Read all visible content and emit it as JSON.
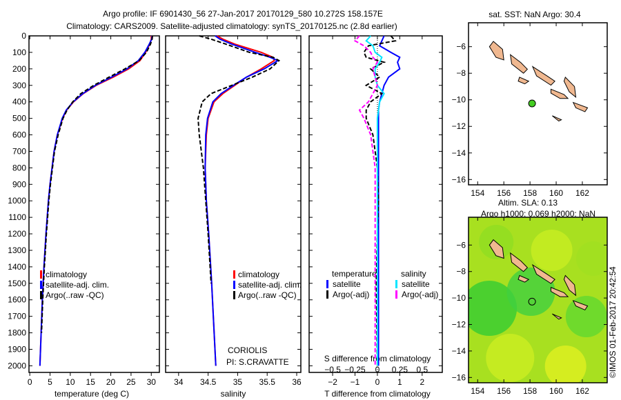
{
  "title_line1": "Argo profile: IF 6901430_56 27-Jan-2017 20170129_580 10.272S 158.157E",
  "title_line2": "Climatology: CARS2009. Satellite-adjusted climatology: synTS_20170125.nc (2.8d earlier)",
  "copyright": "©IMOS 01-Feb-2017 20:42:54",
  "colors": {
    "climatology": "#ff0000",
    "satellite": "#0000ff",
    "argo": "#000000",
    "sal_satellite": "#00e5ff",
    "sal_argo": "#ff00ff",
    "land": "#f0b890",
    "float": "#44cc22"
  },
  "chart_data": [
    {
      "type": "line",
      "name": "temperature",
      "xlabel": "temperature (deg C)",
      "ylabel": "",
      "xlim": [
        -0.2,
        32
      ],
      "ylim": [
        2040,
        0
      ],
      "xticks": [
        0,
        5,
        10,
        15,
        20,
        25,
        30
      ],
      "yticks": [
        0,
        100,
        200,
        300,
        400,
        500,
        600,
        700,
        800,
        900,
        1000,
        1100,
        1200,
        1300,
        1400,
        1500,
        1600,
        1700,
        1800,
        1900,
        2000
      ],
      "legend": [
        "climatology",
        "satellite-adj. clim.",
        "Argo(..raw -QC)"
      ],
      "depth": [
        0,
        20,
        50,
        100,
        150,
        200,
        250,
        300,
        350,
        400,
        450,
        500,
        600,
        700,
        800,
        900,
        1000,
        1200,
        1400,
        1600,
        1800,
        2000
      ],
      "series": [
        {
          "name": "climatology",
          "values": [
            30,
            30,
            29.6,
            28.6,
            27.2,
            24.4,
            20.6,
            16.4,
            13.2,
            10.8,
            9.1,
            8.1,
            6.8,
            6.0,
            5.5,
            5.0,
            4.6,
            4.0,
            3.5,
            3.1,
            2.8,
            2.5
          ]
        },
        {
          "name": "satellite-adj. clim.",
          "values": [
            30.2,
            30.1,
            29.5,
            28.4,
            26.8,
            24.0,
            20.2,
            16.2,
            13.1,
            10.7,
            9.0,
            8.0,
            6.8,
            6.0,
            5.5,
            5.0,
            4.6,
            4.0,
            3.5,
            3.1,
            2.8,
            2.5
          ]
        },
        {
          "name": "Argo(..raw -QC)",
          "values": [
            30.3,
            30.2,
            29.8,
            28.8,
            27.0,
            23.5,
            19.6,
            15.8,
            12.6,
            10.6,
            9.2,
            8.2,
            7.0,
            6.1,
            5.6,
            5.1,
            4.7,
            4.1,
            3.6,
            3.2,
            2.9
          ]
        }
      ]
    },
    {
      "type": "line",
      "name": "salinity",
      "xlabel": "salinity",
      "xlim": [
        33.78,
        36.07
      ],
      "ylim": [
        2040,
        0
      ],
      "xticks": [
        34,
        34.5,
        35,
        35.5,
        36
      ],
      "legend": [
        "climatology",
        "satellite-adj. clim.",
        "Argo(..raw -QC)"
      ],
      "annotation": [
        "CORIOLIS",
        "PI: S.CRAVATTE"
      ],
      "depth": [
        0,
        20,
        50,
        100,
        130,
        150,
        200,
        250,
        300,
        350,
        400,
        500,
        600,
        800,
        1000,
        1200,
        1500,
        2000
      ],
      "series": [
        {
          "name": "climatology",
          "values": [
            34.65,
            34.75,
            34.95,
            35.4,
            35.6,
            35.62,
            35.4,
            35.15,
            34.95,
            34.75,
            34.6,
            34.5,
            34.47,
            34.45,
            34.47,
            34.51,
            34.56,
            34.63
          ]
        },
        {
          "name": "satellite-adj. clim.",
          "values": [
            34.62,
            34.7,
            34.9,
            35.3,
            35.55,
            35.68,
            35.45,
            35.15,
            34.93,
            34.72,
            34.58,
            34.49,
            34.46,
            34.45,
            34.47,
            34.51,
            34.56,
            34.63
          ]
        },
        {
          "name": "Argo(..raw -QC)",
          "values": [
            34.35,
            34.55,
            34.8,
            35.2,
            35.6,
            35.7,
            35.55,
            35.25,
            34.9,
            34.55,
            34.4,
            34.33,
            34.35,
            34.42,
            34.46,
            34.5,
            34.55
          ]
        }
      ]
    },
    {
      "type": "line",
      "name": "difference",
      "xlabel": "T difference from climatology",
      "x2label": "S difference from climatology",
      "xlim": [
        -3.05,
        2.9
      ],
      "xticks": [
        -2,
        -1,
        0,
        1,
        2
      ],
      "x2ticks": [
        "-0.5",
        "-0.25",
        "0",
        "0.25",
        "0.5"
      ],
      "ylim": [
        2040,
        0
      ],
      "legend_headers": [
        "temperature",
        "salinity"
      ],
      "legend": [
        "satellite",
        "Argo(-adj)",
        "satellite",
        "Argo(-adj)"
      ],
      "depth": [
        0,
        30,
        60,
        100,
        130,
        160,
        200,
        250,
        300,
        350,
        400,
        450,
        500,
        600,
        700,
        800,
        1000,
        1200,
        1500,
        2000
      ],
      "series": [
        {
          "name": "T satellite",
          "values": [
            0.3,
            0.2,
            0.1,
            0.6,
            1.0,
            0.9,
            1.0,
            0.5,
            0.3,
            0.2,
            0.1,
            0.05,
            0.05,
            0.05,
            0.05,
            0.05,
            0.05,
            0.05,
            0.05,
            0.05
          ]
        },
        {
          "name": "T Argo(-adj)",
          "values": [
            0.6,
            0.8,
            -0.4,
            -0.6,
            -0.5,
            0.3,
            -0.3,
            0.1,
            -0.5,
            0.2,
            -0.3,
            -0.5,
            -0.5,
            -0.2,
            -0.1,
            0.0,
            0.05,
            0.0,
            -0.05,
            0.0
          ]
        },
        {
          "name": "S satellite",
          "values": [
            -0.3,
            -0.5,
            -0.2,
            -0.1,
            0.2,
            0.1,
            -0.1,
            -0.1,
            0.0,
            0.3,
            0.1,
            0.05,
            0.0,
            0.0,
            0.0,
            0.0,
            0.0,
            0.0,
            0.0,
            0.0
          ]
        },
        {
          "name": "S Argo(-adj)",
          "values": [
            -0.8,
            -1.0,
            -0.6,
            -0.3,
            -0.2,
            0.0,
            -0.2,
            -0.1,
            0.0,
            -0.2,
            -0.4,
            -0.8,
            -0.6,
            -0.3,
            -0.2,
            -0.1,
            -0.1,
            -0.1,
            -0.1,
            -0.1
          ]
        }
      ]
    },
    {
      "type": "map",
      "name": "sst-map",
      "title": "sat. SST: NaN Argo: 30.4",
      "xlim": [
        153.3,
        163.9
      ],
      "ylim": [
        -16.4,
        -4.2
      ],
      "xticks": [
        154,
        156,
        158,
        160,
        162
      ],
      "yticks": [
        -6,
        -8,
        -10,
        -12,
        -14,
        -16
      ],
      "float": {
        "lon": 158.157,
        "lat": -10.272
      }
    },
    {
      "type": "map",
      "name": "sla-map",
      "title": "Altim. SLA: 0.13",
      "subtitle": "Argo h1000: 0.069 h2000: NaN",
      "xlim": [
        153.3,
        163.9
      ],
      "ylim": [
        -16.4,
        -3.9
      ],
      "xticks": [
        154,
        156,
        158,
        160,
        162
      ],
      "yticks": [
        -6,
        -8,
        -10,
        -12,
        -14,
        -16
      ],
      "float": {
        "lon": 158.157,
        "lat": -10.272
      }
    }
  ]
}
